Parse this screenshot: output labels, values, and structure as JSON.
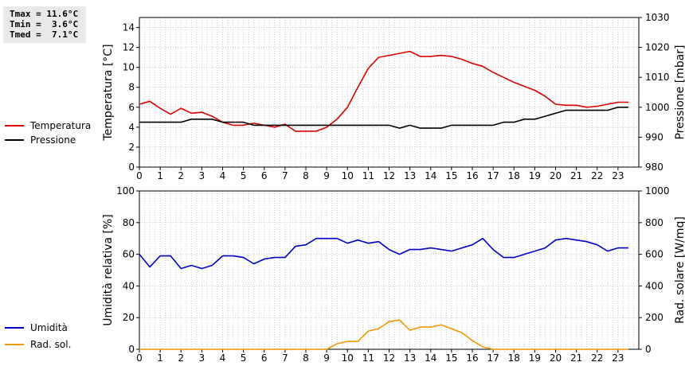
{
  "stats": {
    "tmax": "Tmax = 11.6°C",
    "tmin": "Tmin =  3.6°C",
    "tmed": "Tmed =  7.1°C"
  },
  "chart_data": [
    {
      "type": "line",
      "x_ticks": [
        "0",
        "1",
        "2",
        "3",
        "4",
        "5",
        "6",
        "7",
        "8",
        "9",
        "10",
        "11",
        "12",
        "13",
        "14",
        "15",
        "16",
        "17",
        "18",
        "19",
        "20",
        "21",
        "22",
        "23"
      ],
      "xlim": [
        0,
        24
      ],
      "ylabel_left": "Temperatura [°C]",
      "ylim_left": [
        0,
        15
      ],
      "yticks_left": [
        0,
        2,
        4,
        6,
        8,
        10,
        12,
        14
      ],
      "ylabel_right": "Pressione [mbar]",
      "ylim_right": [
        980,
        1030
      ],
      "yticks_right": [
        980,
        990,
        1000,
        1010,
        1020,
        1030
      ],
      "grid": true,
      "legend_placement": "left",
      "series": [
        {
          "name": "Temperatura",
          "axis": "left",
          "color": "#dd0000",
          "x": [
            0,
            0.5,
            1,
            1.5,
            2,
            2.5,
            3,
            3.5,
            4,
            4.5,
            5,
            5.5,
            6,
            6.5,
            7,
            7.5,
            8,
            8.5,
            9,
            9.5,
            10,
            10.5,
            11,
            11.5,
            12,
            12.5,
            13,
            13.5,
            14,
            14.5,
            15,
            15.5,
            16,
            16.5,
            17,
            17.5,
            18,
            18.5,
            19,
            19.5,
            20,
            20.5,
            21,
            21.5,
            22,
            22.5,
            23,
            23.5
          ],
          "y": [
            6.3,
            6.6,
            5.9,
            5.3,
            5.9,
            5.4,
            5.5,
            5.1,
            4.5,
            4.2,
            4.2,
            4.4,
            4.2,
            4.0,
            4.3,
            3.6,
            3.6,
            3.6,
            4.0,
            4.8,
            6.0,
            8.0,
            9.9,
            11.0,
            11.2,
            11.4,
            11.6,
            11.1,
            11.1,
            11.2,
            11.1,
            10.8,
            10.4,
            10.1,
            9.5,
            9.0,
            8.5,
            8.1,
            7.7,
            7.1,
            6.3,
            6.2,
            6.2,
            6.0,
            6.1,
            6.3,
            6.5,
            6.5
          ]
        },
        {
          "name": "Pressione",
          "axis": "right",
          "color": "#000000",
          "x": [
            0,
            0.5,
            1,
            1.5,
            2,
            2.5,
            3,
            3.5,
            4,
            4.5,
            5,
            5.5,
            6,
            6.5,
            7,
            7.5,
            8,
            8.5,
            9,
            9.5,
            10,
            10.5,
            11,
            11.5,
            12,
            12.5,
            13,
            13.5,
            14,
            14.5,
            15,
            15.5,
            16,
            16.5,
            17,
            17.5,
            18,
            18.5,
            19,
            19.5,
            20,
            20.5,
            21,
            21.5,
            22,
            22.5,
            23,
            23.5
          ],
          "y": [
            995,
            995,
            995,
            995,
            995,
            996,
            996,
            996,
            995,
            995,
            995,
            994,
            994,
            994,
            994,
            994,
            994,
            994,
            994,
            994,
            994,
            994,
            994,
            994,
            994,
            993,
            994,
            993,
            993,
            993,
            994,
            994,
            994,
            994,
            994,
            995,
            995,
            996,
            996,
            997,
            998,
            999,
            999,
            999,
            999,
            999,
            1000,
            1000
          ]
        }
      ]
    },
    {
      "type": "line",
      "x_ticks": [
        "0",
        "1",
        "2",
        "3",
        "4",
        "5",
        "6",
        "7",
        "8",
        "9",
        "10",
        "11",
        "12",
        "13",
        "14",
        "15",
        "16",
        "17",
        "18",
        "19",
        "20",
        "21",
        "22",
        "23"
      ],
      "xlim": [
        0,
        24
      ],
      "ylabel_left": "Umidità relativa [%]",
      "ylim_left": [
        0,
        100
      ],
      "yticks_left": [
        0,
        20,
        40,
        60,
        80,
        100
      ],
      "ylabel_right": "Rad. solare [W/mq]",
      "ylim_right": [
        0,
        1000
      ],
      "yticks_right": [
        0,
        200,
        400,
        600,
        800,
        1000
      ],
      "grid": true,
      "legend_placement": "left",
      "series": [
        {
          "name": "Umidità",
          "axis": "left",
          "color": "#0000cc",
          "x": [
            0,
            0.5,
            1,
            1.5,
            2,
            2.5,
            3,
            3.5,
            4,
            4.5,
            5,
            5.5,
            6,
            6.5,
            7,
            7.5,
            8,
            8.5,
            9,
            9.5,
            10,
            10.5,
            11,
            11.5,
            12,
            12.5,
            13,
            13.5,
            14,
            14.5,
            15,
            15.5,
            16,
            16.5,
            17,
            17.5,
            18,
            18.5,
            19,
            19.5,
            20,
            20.5,
            21,
            21.5,
            22,
            22.5,
            23,
            23.5
          ],
          "y": [
            60,
            52,
            59,
            59,
            51,
            53,
            51,
            53,
            59,
            59,
            58,
            54,
            57,
            58,
            58,
            65,
            66,
            70,
            70,
            70,
            67,
            69,
            67,
            68,
            63,
            60,
            63,
            63,
            64,
            63,
            62,
            64,
            66,
            70,
            63,
            58,
            58,
            60,
            62,
            64,
            69,
            70,
            69,
            68,
            66,
            62,
            64,
            64
          ]
        },
        {
          "name": "Rad. sol.",
          "axis": "right",
          "color": "#ee9900",
          "x": [
            0,
            0.5,
            1,
            1.5,
            2,
            2.5,
            3,
            3.5,
            4,
            4.5,
            5,
            5.5,
            6,
            6.5,
            7,
            7.5,
            8,
            8.5,
            9,
            9.5,
            10,
            10.5,
            11,
            11.5,
            12,
            12.5,
            13,
            13.5,
            14,
            14.5,
            15,
            15.5,
            16,
            16.5,
            17,
            17.5,
            18,
            18.5,
            19,
            19.5,
            20,
            20.5,
            21,
            21.5,
            22,
            22.5,
            23,
            23.5
          ],
          "y": [
            0,
            0,
            0,
            0,
            0,
            0,
            0,
            0,
            0,
            0,
            0,
            0,
            0,
            0,
            0,
            0,
            0,
            0,
            0,
            35,
            50,
            50,
            115,
            130,
            175,
            185,
            120,
            140,
            140,
            155,
            130,
            105,
            55,
            15,
            0,
            0,
            0,
            0,
            0,
            0,
            0,
            0,
            0,
            0,
            0,
            0,
            0,
            0
          ]
        }
      ]
    }
  ]
}
